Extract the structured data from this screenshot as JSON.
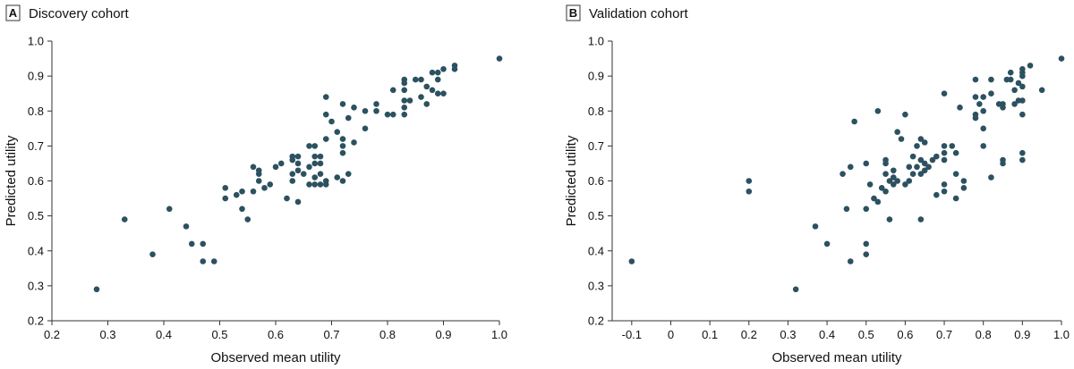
{
  "colors": {
    "point": "#2c5160",
    "axis": "#333333",
    "text": "#111111"
  },
  "chart_data": [
    {
      "type": "scatter",
      "panel_letter": "A",
      "title": "Discovery cohort",
      "xlabel": "Observed mean utility",
      "ylabel": "Predicted utility",
      "xlim": [
        0.2,
        1.0
      ],
      "ylim": [
        0.2,
        1.0
      ],
      "xticks": [
        0.2,
        0.3,
        0.4,
        0.5,
        0.6,
        0.7,
        0.8,
        0.9,
        1.0
      ],
      "xtick_labels": [
        "0.2",
        "0.3",
        "0.4",
        "0.5",
        "0.6",
        "0.7",
        "0.8",
        "0.9",
        "1.0"
      ],
      "yticks": [
        0.2,
        0.3,
        0.4,
        0.5,
        0.6,
        0.7,
        0.8,
        0.9,
        1.0
      ],
      "ytick_labels": [
        "0.2",
        "0.3",
        "0.4",
        "0.5",
        "0.6",
        "0.7",
        "0.8",
        "0.9",
        "1.0"
      ],
      "points": [
        [
          0.28,
          0.29
        ],
        [
          0.33,
          0.49
        ],
        [
          0.38,
          0.39
        ],
        [
          0.41,
          0.52
        ],
        [
          0.44,
          0.47
        ],
        [
          0.45,
          0.42
        ],
        [
          0.47,
          0.42
        ],
        [
          0.47,
          0.37
        ],
        [
          0.49,
          0.37
        ],
        [
          0.51,
          0.58
        ],
        [
          0.51,
          0.55
        ],
        [
          0.53,
          0.56
        ],
        [
          0.54,
          0.57
        ],
        [
          0.54,
          0.52
        ],
        [
          0.55,
          0.49
        ],
        [
          0.56,
          0.64
        ],
        [
          0.56,
          0.57
        ],
        [
          0.57,
          0.63
        ],
        [
          0.57,
          0.62
        ],
        [
          0.57,
          0.6
        ],
        [
          0.58,
          0.58
        ],
        [
          0.59,
          0.59
        ],
        [
          0.6,
          0.64
        ],
        [
          0.61,
          0.65
        ],
        [
          0.62,
          0.55
        ],
        [
          0.63,
          0.67
        ],
        [
          0.63,
          0.66
        ],
        [
          0.63,
          0.62
        ],
        [
          0.63,
          0.6
        ],
        [
          0.64,
          0.67
        ],
        [
          0.64,
          0.65
        ],
        [
          0.64,
          0.63
        ],
        [
          0.64,
          0.54
        ],
        [
          0.65,
          0.62
        ],
        [
          0.66,
          0.7
        ],
        [
          0.66,
          0.64
        ],
        [
          0.66,
          0.59
        ],
        [
          0.67,
          0.7
        ],
        [
          0.67,
          0.67
        ],
        [
          0.67,
          0.65
        ],
        [
          0.67,
          0.61
        ],
        [
          0.67,
          0.59
        ],
        [
          0.68,
          0.67
        ],
        [
          0.68,
          0.65
        ],
        [
          0.68,
          0.62
        ],
        [
          0.68,
          0.59
        ],
        [
          0.69,
          0.84
        ],
        [
          0.69,
          0.79
        ],
        [
          0.69,
          0.72
        ],
        [
          0.69,
          0.6
        ],
        [
          0.69,
          0.59
        ],
        [
          0.7,
          0.77
        ],
        [
          0.71,
          0.74
        ],
        [
          0.71,
          0.61
        ],
        [
          0.72,
          0.82
        ],
        [
          0.72,
          0.72
        ],
        [
          0.72,
          0.7
        ],
        [
          0.72,
          0.68
        ],
        [
          0.72,
          0.6
        ],
        [
          0.73,
          0.78
        ],
        [
          0.73,
          0.62
        ],
        [
          0.74,
          0.81
        ],
        [
          0.74,
          0.71
        ],
        [
          0.76,
          0.8
        ],
        [
          0.76,
          0.75
        ],
        [
          0.78,
          0.82
        ],
        [
          0.78,
          0.8
        ],
        [
          0.8,
          0.79
        ],
        [
          0.81,
          0.86
        ],
        [
          0.81,
          0.79
        ],
        [
          0.83,
          0.89
        ],
        [
          0.83,
          0.88
        ],
        [
          0.83,
          0.86
        ],
        [
          0.83,
          0.83
        ],
        [
          0.83,
          0.81
        ],
        [
          0.83,
          0.79
        ],
        [
          0.84,
          0.83
        ],
        [
          0.85,
          0.89
        ],
        [
          0.86,
          0.89
        ],
        [
          0.86,
          0.84
        ],
        [
          0.87,
          0.87
        ],
        [
          0.87,
          0.82
        ],
        [
          0.88,
          0.91
        ],
        [
          0.88,
          0.86
        ],
        [
          0.89,
          0.91
        ],
        [
          0.89,
          0.89
        ],
        [
          0.89,
          0.85
        ],
        [
          0.9,
          0.92
        ],
        [
          0.9,
          0.85
        ],
        [
          0.92,
          0.93
        ],
        [
          0.92,
          0.92
        ],
        [
          1.0,
          0.95
        ]
      ]
    },
    {
      "type": "scatter",
      "panel_letter": "B",
      "title": "Validation cohort",
      "xlabel": "Observed mean utility",
      "ylabel": "Predicted utility",
      "xlim": [
        -0.15,
        1.0
      ],
      "ylim": [
        0.2,
        1.0
      ],
      "xticks": [
        -0.1,
        0,
        0.1,
        0.2,
        0.3,
        0.4,
        0.5,
        0.6,
        0.7,
        0.8,
        0.9,
        1.0
      ],
      "xtick_labels": [
        "-0.1",
        "0",
        "0.1",
        "0.2",
        "0.3",
        "0.4",
        "0.5",
        "0.6",
        "0.7",
        "0.8",
        "0.9",
        "1.0"
      ],
      "yticks": [
        0.2,
        0.3,
        0.4,
        0.5,
        0.6,
        0.7,
        0.8,
        0.9,
        1.0
      ],
      "ytick_labels": [
        "0.2",
        "0.3",
        "0.4",
        "0.5",
        "0.6",
        "0.7",
        "0.8",
        "0.9",
        "1.0"
      ],
      "points": [
        [
          -0.1,
          0.37
        ],
        [
          0.2,
          0.6
        ],
        [
          0.2,
          0.57
        ],
        [
          0.32,
          0.29
        ],
        [
          0.37,
          0.47
        ],
        [
          0.4,
          0.42
        ],
        [
          0.44,
          0.62
        ],
        [
          0.45,
          0.52
        ],
        [
          0.46,
          0.64
        ],
        [
          0.46,
          0.37
        ],
        [
          0.47,
          0.77
        ],
        [
          0.5,
          0.65
        ],
        [
          0.5,
          0.52
        ],
        [
          0.5,
          0.42
        ],
        [
          0.5,
          0.39
        ],
        [
          0.51,
          0.59
        ],
        [
          0.52,
          0.55
        ],
        [
          0.53,
          0.8
        ],
        [
          0.53,
          0.54
        ],
        [
          0.54,
          0.58
        ],
        [
          0.55,
          0.66
        ],
        [
          0.55,
          0.65
        ],
        [
          0.55,
          0.62
        ],
        [
          0.55,
          0.57
        ],
        [
          0.56,
          0.6
        ],
        [
          0.56,
          0.49
        ],
        [
          0.57,
          0.63
        ],
        [
          0.57,
          0.61
        ],
        [
          0.57,
          0.59
        ],
        [
          0.58,
          0.74
        ],
        [
          0.58,
          0.6
        ],
        [
          0.59,
          0.72
        ],
        [
          0.6,
          0.79
        ],
        [
          0.6,
          0.59
        ],
        [
          0.61,
          0.64
        ],
        [
          0.61,
          0.6
        ],
        [
          0.62,
          0.67
        ],
        [
          0.62,
          0.62
        ],
        [
          0.63,
          0.7
        ],
        [
          0.63,
          0.64
        ],
        [
          0.64,
          0.72
        ],
        [
          0.64,
          0.66
        ],
        [
          0.64,
          0.62
        ],
        [
          0.64,
          0.49
        ],
        [
          0.65,
          0.71
        ],
        [
          0.65,
          0.65
        ],
        [
          0.65,
          0.63
        ],
        [
          0.66,
          0.64
        ],
        [
          0.67,
          0.66
        ],
        [
          0.68,
          0.67
        ],
        [
          0.68,
          0.56
        ],
        [
          0.7,
          0.85
        ],
        [
          0.7,
          0.7
        ],
        [
          0.7,
          0.68
        ],
        [
          0.7,
          0.66
        ],
        [
          0.7,
          0.59
        ],
        [
          0.7,
          0.57
        ],
        [
          0.72,
          0.7
        ],
        [
          0.73,
          0.68
        ],
        [
          0.73,
          0.62
        ],
        [
          0.73,
          0.55
        ],
        [
          0.74,
          0.81
        ],
        [
          0.75,
          0.6
        ],
        [
          0.75,
          0.58
        ],
        [
          0.78,
          0.89
        ],
        [
          0.78,
          0.84
        ],
        [
          0.78,
          0.79
        ],
        [
          0.78,
          0.78
        ],
        [
          0.79,
          0.82
        ],
        [
          0.8,
          0.84
        ],
        [
          0.8,
          0.8
        ],
        [
          0.8,
          0.75
        ],
        [
          0.8,
          0.7
        ],
        [
          0.82,
          0.89
        ],
        [
          0.82,
          0.85
        ],
        [
          0.82,
          0.61
        ],
        [
          0.84,
          0.82
        ],
        [
          0.85,
          0.82
        ],
        [
          0.85,
          0.81
        ],
        [
          0.85,
          0.66
        ],
        [
          0.85,
          0.65
        ],
        [
          0.86,
          0.89
        ],
        [
          0.87,
          0.91
        ],
        [
          0.87,
          0.89
        ],
        [
          0.88,
          0.86
        ],
        [
          0.88,
          0.82
        ],
        [
          0.89,
          0.88
        ],
        [
          0.89,
          0.83
        ],
        [
          0.9,
          0.92
        ],
        [
          0.9,
          0.91
        ],
        [
          0.9,
          0.9
        ],
        [
          0.9,
          0.87
        ],
        [
          0.9,
          0.83
        ],
        [
          0.9,
          0.79
        ],
        [
          0.9,
          0.68
        ],
        [
          0.9,
          0.66
        ],
        [
          0.92,
          0.93
        ],
        [
          0.95,
          0.86
        ],
        [
          1.0,
          0.95
        ]
      ]
    }
  ]
}
